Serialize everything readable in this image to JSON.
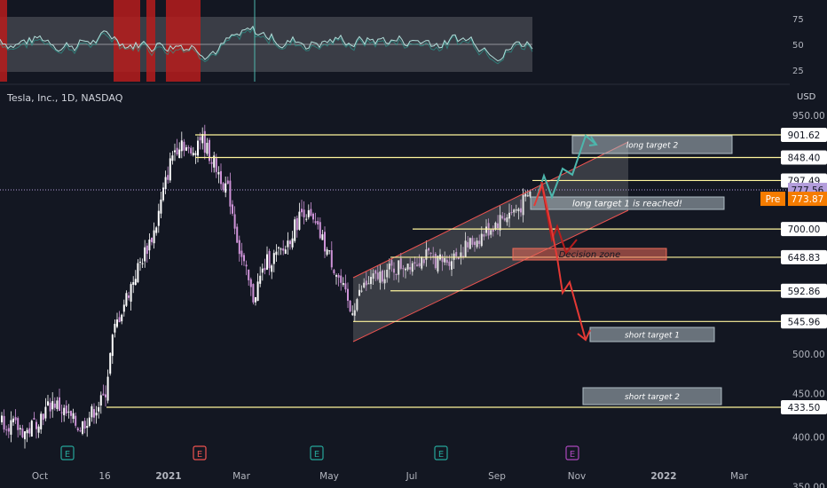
{
  "header": {
    "symbol_title": "Tesla, Inc., 1D, NASDAQ",
    "currency": "USD"
  },
  "chart_data": {
    "type": "candlestick",
    "title": "Tesla, Inc., 1D, NASDAQ",
    "x_axis": {
      "labels": [
        "Oct",
        "16",
        "2021",
        "Mar",
        "May",
        "Jul",
        "Sep",
        "Nov",
        "2022",
        "Mar"
      ]
    },
    "y_axis": {
      "scale": "log",
      "ylim": [
        340,
        960
      ],
      "tick_labels": [
        "950.00",
        "500.00",
        "450.00",
        "400.00",
        "350.00"
      ],
      "currency": "USD"
    },
    "price_levels": [
      {
        "label": "901.62",
        "value": 901.62,
        "color": "#fff59d"
      },
      {
        "label": "848.40",
        "value": 848.4,
        "color": "#fff59d"
      },
      {
        "label": "797.49",
        "value": 797.49,
        "color": "#fff59d"
      },
      {
        "label": "700.00",
        "value": 700.0,
        "color": "#fff59d"
      },
      {
        "label": "648.83",
        "value": 648.83,
        "color": "#fff59d"
      },
      {
        "label": "592.86",
        "value": 592.86,
        "color": "#fff59d"
      },
      {
        "label": "545.96",
        "value": 545.96,
        "color": "#fff59d"
      },
      {
        "label": "433.50",
        "value": 433.5,
        "color": "#fff59d"
      }
    ],
    "last_price": {
      "label": "777.56",
      "value": 777.56,
      "color": "#b39ddb"
    },
    "premarket": {
      "badge": "Pre",
      "label": "773.87",
      "value": 773.87,
      "color": "#f57c00"
    },
    "annotations": [
      {
        "text": "long target 2"
      },
      {
        "text": "long target 1 is reached!"
      },
      {
        "text": "Decision zone"
      },
      {
        "text": "short target 1"
      },
      {
        "text": "short target 2"
      }
    ],
    "event_markers": [
      "E",
      "E",
      "E",
      "E",
      "E",
      "E"
    ],
    "indicator": {
      "name": "RSI",
      "tick_labels": [
        "75",
        "50",
        "25"
      ],
      "levels": [
        75,
        50,
        25
      ]
    },
    "colors": {
      "background": "#131722",
      "candle_up": "#ffffff",
      "candle_down": "#ce93d8",
      "level_line": "#fff59d",
      "channel": "#ef5350",
      "long_path": "#4db6ac",
      "short_path": "#e53935",
      "rsi_line": "#b2dfdb",
      "rsi_band": "#c8c8c8",
      "rsi_highlight": "#b71c1c",
      "earnings_past": "#26a69a",
      "earnings_future": "#ab47bc",
      "earnings_red": "#ef5350"
    }
  }
}
